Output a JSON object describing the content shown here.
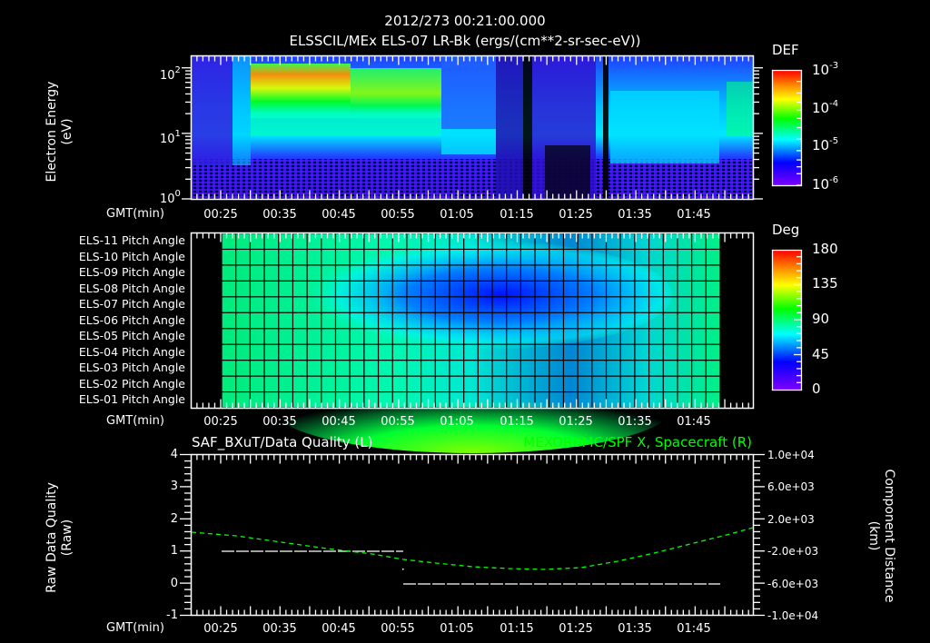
{
  "header": {
    "timestamp": "2012/273 00:21:00.000",
    "subtitle": "ELSSCIL/MEx ELS-07 LR-Bk  (ergs/(cm**2-sr-sec-eV))"
  },
  "time_axis": {
    "label": "GMT(min)",
    "ticks": [
      "00:25",
      "00:35",
      "00:45",
      "00:55",
      "01:05",
      "01:15",
      "01:25",
      "01:35",
      "01:45"
    ]
  },
  "panel1": {
    "ylabel_line1": "Electron Energy",
    "ylabel_line2": "(eV)",
    "yticks": [
      {
        "base": "10",
        "exp": "2"
      },
      {
        "base": "10",
        "exp": "1"
      },
      {
        "base": "10",
        "exp": "0"
      }
    ],
    "colorbar": {
      "title": "DEF",
      "ticks": [
        {
          "base": "10",
          "exp": "-3"
        },
        {
          "base": "10",
          "exp": "-4"
        },
        {
          "base": "10",
          "exp": "-5"
        },
        {
          "base": "10",
          "exp": "-6"
        }
      ]
    }
  },
  "panel2": {
    "rows": [
      "ELS-11 Pitch Angle",
      "ELS-10 Pitch Angle",
      "ELS-09 Pitch Angle",
      "ELS-08 Pitch Angle",
      "ELS-07 Pitch Angle",
      "ELS-06 Pitch Angle",
      "ELS-05 Pitch Angle",
      "ELS-04 Pitch Angle",
      "ELS-03 Pitch Angle",
      "ELS-02 Pitch Angle",
      "ELS-01 Pitch Angle"
    ],
    "colorbar": {
      "title": "Deg",
      "ticks": [
        "180",
        "135",
        "90",
        "45",
        "0"
      ]
    }
  },
  "panel3": {
    "left_title": "SAF_BXuT/Data Quality (L)",
    "right_title": "MEXORBMC/SPF X, Spacecraft (R)",
    "right_title_color": "#00ff00",
    "ylabel_left_line1": "Raw Data Quality",
    "ylabel_left_line2": "(Raw)",
    "ylabel_right_line1": "Component Distance",
    "ylabel_right_line2": "(km)",
    "yticks_left": [
      "4",
      "3",
      "2",
      "1",
      "0",
      "-1"
    ],
    "yticks_right": [
      "1.0e+04",
      "6.0e+03",
      "2.0e+03",
      "-2.0e+03",
      "-6.0e+03",
      "-1.0e+04"
    ]
  },
  "chart_data": [
    {
      "type": "heatmap",
      "title": "ELSSCIL/MEx ELS-07 LR-Bk (ergs/(cm**2-sr-sec-eV))",
      "subtitle": "2012/273 00:21:00.000",
      "xlabel": "GMT(min)",
      "ylabel": "Electron Energy (eV)",
      "yscale": "log",
      "ylim": [
        1,
        150
      ],
      "xlim": [
        "00:20",
        "01:55"
      ],
      "x_ticks": [
        "00:25",
        "00:35",
        "00:45",
        "00:55",
        "01:05",
        "01:15",
        "01:25",
        "01:35",
        "01:45"
      ],
      "colorbar": {
        "label": "DEF",
        "scale": "log",
        "range": [
          1e-06,
          0.001
        ]
      },
      "features": [
        {
          "time_range": [
            "00:29",
            "00:55"
          ],
          "energy_range_eV": [
            15,
            120
          ],
          "level": "1e-4 to 5e-4 (peak near 00:30-00:35, ~60 eV)"
        },
        {
          "time_range": [
            "00:57",
            "01:06"
          ],
          "energy_range_eV": [
            5,
            10
          ],
          "level": "~1e-5"
        },
        {
          "time_range": [
            "01:08",
            "01:25"
          ],
          "energy_range_eV": [
            1,
            100
          ],
          "level": "<1e-6 to 3e-6 (dropout)"
        },
        {
          "time_range": [
            "01:29",
            "01:52"
          ],
          "energy_range_eV": [
            5,
            60
          ],
          "level": "~1e-5 to 5e-5"
        }
      ]
    },
    {
      "type": "heatmap",
      "title": "Pitch Angle",
      "xlabel": "GMT(min)",
      "x_ticks": [
        "00:25",
        "00:35",
        "00:45",
        "00:55",
        "01:05",
        "01:15",
        "01:25",
        "01:35",
        "01:45"
      ],
      "rows": [
        "ELS-11",
        "ELS-10",
        "ELS-09",
        "ELS-08",
        "ELS-07",
        "ELS-06",
        "ELS-05",
        "ELS-04",
        "ELS-03",
        "ELS-02",
        "ELS-01"
      ],
      "time_range": [
        "00:26",
        "01:48"
      ],
      "colorbar": {
        "label": "Deg",
        "range": [
          0,
          180
        ],
        "ticks": [
          0,
          45,
          90,
          135,
          180
        ]
      },
      "features": [
        {
          "description": "minimum pitch angle ~30 deg for ELS-07/08 near 01:20-01:25"
        },
        {
          "description": "ELS-01/02 ~100-115 deg near 01:15-01:30"
        },
        {
          "description": "edges ~80-90 deg"
        }
      ]
    },
    {
      "type": "line",
      "title_left": "SAF_BXuT/Data Quality (L)",
      "title_right": "MEXORBMC/SPF X, Spacecraft (R)",
      "xlabel": "GMT(min)",
      "ylabel_left": "Raw Data Quality (Raw)",
      "ylabel_right": "Component Distance (km)",
      "ylim_left": [
        -1,
        4
      ],
      "ylim_right": [
        -10000,
        10000
      ],
      "series": [
        {
          "name": "Data Quality (L)",
          "color": "#ffffff",
          "style": "dashed",
          "x": [
            "00:26",
            "00:56",
            "00:56",
            "01:48"
          ],
          "y": [
            1,
            1,
            0,
            0
          ]
        },
        {
          "name": "SPF X Spacecraft (R)",
          "color": "#00ff00",
          "style": "dashed",
          "x": [
            "00:20",
            "00:30",
            "00:40",
            "00:50",
            "01:00",
            "01:10",
            "01:20",
            "01:30",
            "01:40",
            "01:50",
            "01:55"
          ],
          "y": [
            2400,
            1300,
            0,
            -1400,
            -2600,
            -3400,
            -3500,
            -2500,
            -800,
            1100,
            2000
          ]
        }
      ]
    }
  ]
}
